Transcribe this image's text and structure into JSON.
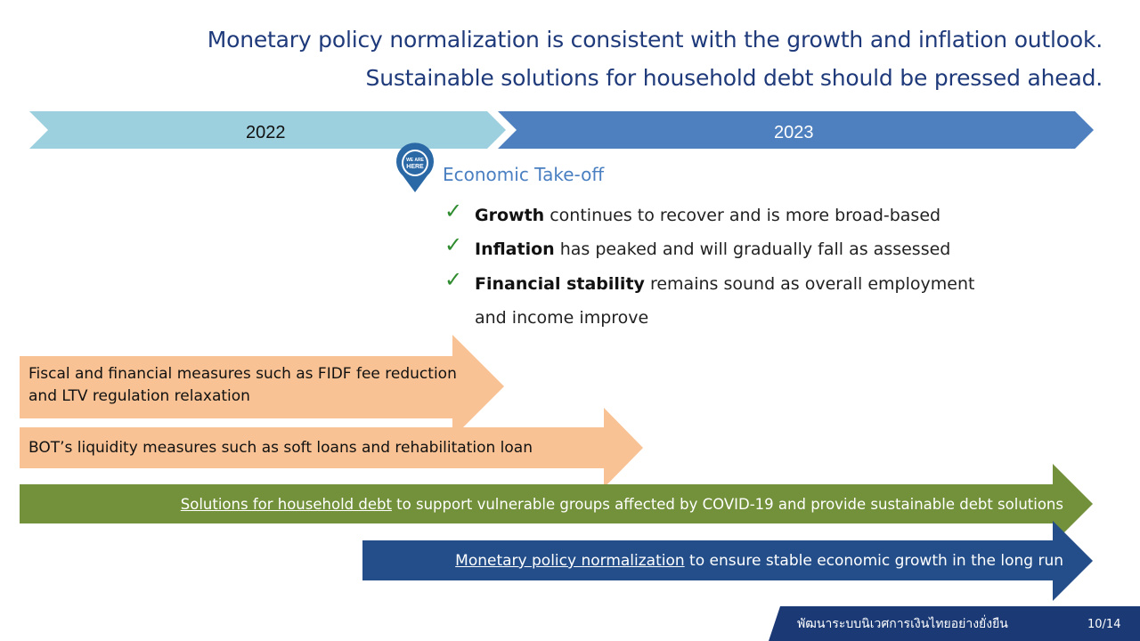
{
  "header": {
    "line1": "Monetary policy normalization is consistent with the growth and inflation outlook.",
    "line2": "Sustainable solutions for household debt should be pressed ahead."
  },
  "timeline": {
    "year1": "2022",
    "year2": "2023",
    "colors": {
      "year1": "#9dd0de",
      "year2": "#4e7fbe"
    }
  },
  "marker": {
    "badge": "WE ARE HERE",
    "label": "Economic Take-off",
    "icon": "location-pin-icon"
  },
  "checklist": [
    {
      "bold": "Growth",
      "rest": " continues to recover and is more broad-based"
    },
    {
      "bold": "Inflation",
      "rest": " has peaked and will gradually fall as assessed"
    },
    {
      "bold": "Financial stability",
      "rest": " remains sound as overall employment"
    }
  ],
  "checklist_continuation": "and income improve",
  "arrows": {
    "fiscal": {
      "line1": "Fiscal and financial measures such as FIDF fee reduction",
      "line2": "and LTV regulation relaxation",
      "color": "#f8c294"
    },
    "liquidity": {
      "text": "BOT’s liquidity measures such as soft loans and rehabilitation loan",
      "color": "#f8c294"
    },
    "household": {
      "link": "Solutions for household debt",
      "rest": " to support vulnerable groups affected by COVID-19 and provide sustainable debt solutions",
      "color": "#72913a"
    },
    "monetary": {
      "link": "Monetary policy normalization",
      "rest": " to ensure stable economic growth in the long run",
      "color": "#234e8a"
    }
  },
  "footer": {
    "tagline": "พัฒนาระบบนิเวศการเงินไทยอย่างยั่งยืน",
    "page": "10/14",
    "color": "#1b3a75"
  }
}
